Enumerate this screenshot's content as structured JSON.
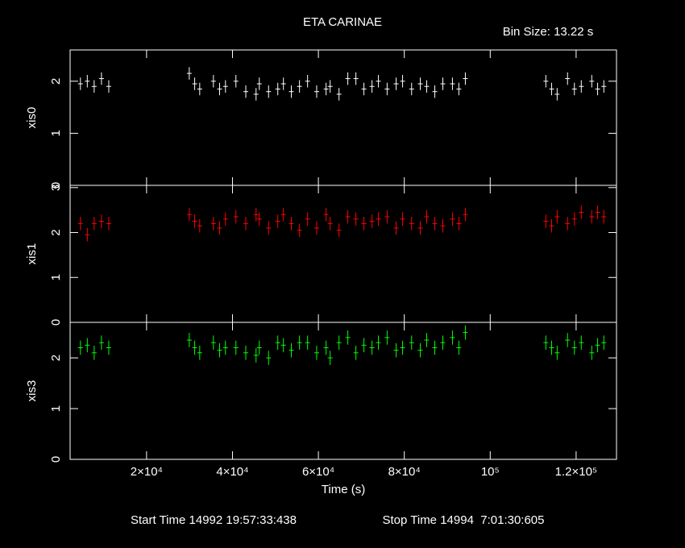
{
  "title": "ETA CARINAE",
  "bin_size": "Bin Size: 13.22 s",
  "start_time": "Start Time 14992 19:57:33:438",
  "stop_time": "Stop Time 14994  7:01:30:605",
  "chart_data": [
    {
      "type": "errorbar",
      "ylabel": "xis0",
      "ylim": [
        0,
        2.6
      ],
      "yticks": [
        0,
        1,
        2
      ],
      "xlim": [
        2200,
        129400
      ],
      "xticks": [
        20000,
        40000,
        60000,
        80000,
        100000,
        120000
      ],
      "x": [
        4600,
        6200,
        7800,
        9500,
        11200,
        29940,
        31200,
        32370,
        35560,
        37000,
        38370,
        40800,
        43100,
        45490,
        46240,
        48400,
        50550,
        51860,
        53700,
        55600,
        57480,
        59600,
        61790,
        62730,
        64800,
        66850,
        68730,
        70600,
        72480,
        73970,
        76000,
        78100,
        79600,
        81700,
        83720,
        85220,
        87100,
        88970,
        91210,
        92700,
        94210,
        112950,
        114300,
        115580,
        118000,
        119600,
        121200,
        123640,
        125000,
        126450
      ],
      "series": [
        {
          "name": "xis0",
          "color": "#ffffff",
          "error": 0.12,
          "values": [
            1.95,
            2.0,
            1.9,
            2.05,
            1.9,
            2.15,
            1.95,
            1.85,
            2.0,
            1.85,
            1.9,
            2.0,
            1.8,
            1.75,
            1.95,
            1.8,
            1.85,
            1.95,
            1.8,
            1.9,
            2.0,
            1.8,
            1.85,
            1.9,
            1.75,
            2.05,
            2.05,
            1.85,
            1.9,
            2.0,
            1.85,
            1.95,
            2.0,
            1.85,
            1.95,
            1.9,
            1.8,
            1.95,
            1.95,
            1.85,
            2.05,
            2.0,
            1.85,
            1.75,
            2.05,
            1.85,
            1.9,
            2.0,
            1.85,
            1.9
          ]
        }
      ]
    },
    {
      "type": "errorbar",
      "ylabel": "xis1",
      "ylim": [
        0,
        3.05
      ],
      "yticks": [
        0,
        1,
        2,
        3
      ],
      "xlim": [
        2200,
        129400
      ],
      "xticks": [
        20000,
        40000,
        60000,
        80000,
        100000,
        120000
      ],
      "x": [
        4600,
        6200,
        7800,
        9500,
        11200,
        29940,
        31200,
        32370,
        35560,
        37000,
        38370,
        40800,
        43100,
        45490,
        46240,
        48400,
        50550,
        51860,
        53700,
        55600,
        57480,
        59600,
        61790,
        62730,
        64800,
        66850,
        68730,
        70600,
        72480,
        73970,
        76000,
        78100,
        79600,
        81700,
        83720,
        85220,
        87100,
        88970,
        91210,
        92700,
        94210,
        112950,
        114300,
        115580,
        118000,
        119600,
        121200,
        123640,
        125000,
        126450
      ],
      "series": [
        {
          "name": "xis1",
          "color": "#ff0000",
          "error": 0.15,
          "values": [
            2.2,
            1.95,
            2.2,
            2.25,
            2.2,
            2.4,
            2.25,
            2.15,
            2.2,
            2.1,
            2.3,
            2.35,
            2.2,
            2.4,
            2.3,
            2.1,
            2.25,
            2.4,
            2.2,
            2.05,
            2.3,
            2.1,
            2.4,
            2.2,
            2.05,
            2.35,
            2.3,
            2.2,
            2.25,
            2.3,
            2.35,
            2.1,
            2.3,
            2.2,
            2.1,
            2.35,
            2.2,
            2.15,
            2.3,
            2.2,
            2.4,
            2.25,
            2.15,
            2.35,
            2.2,
            2.3,
            2.45,
            2.35,
            2.45,
            2.35
          ]
        }
      ]
    },
    {
      "type": "errorbar",
      "ylabel": "xis3",
      "xlabel": "Time (s)",
      "ylim": [
        0,
        2.7
      ],
      "yticks": [
        0,
        1,
        2
      ],
      "xlim": [
        2200,
        129400
      ],
      "xticks": [
        {
          "value": 20000,
          "label": "2×10⁴"
        },
        {
          "value": 40000,
          "label": "4×10⁴"
        },
        {
          "value": 60000,
          "label": "6×10⁴"
        },
        {
          "value": 80000,
          "label": "8×10⁴"
        },
        {
          "value": 100000,
          "label": "10⁵"
        },
        {
          "value": 120000,
          "label": "1.2×10⁵"
        }
      ],
      "x": [
        4600,
        6200,
        7800,
        9500,
        11200,
        29940,
        31200,
        32370,
        35560,
        37000,
        38370,
        40800,
        43100,
        45490,
        46240,
        48400,
        50550,
        51860,
        53700,
        55600,
        57480,
        59600,
        61790,
        62730,
        64800,
        66850,
        68730,
        70600,
        72480,
        73970,
        76000,
        78100,
        79600,
        81700,
        83720,
        85220,
        87100,
        88970,
        91210,
        92700,
        94210,
        112950,
        114300,
        115580,
        118000,
        119600,
        121200,
        123640,
        125000,
        126450
      ],
      "series": [
        {
          "name": "xis3",
          "color": "#00ff00",
          "error": 0.14,
          "values": [
            2.2,
            2.25,
            2.1,
            2.3,
            2.2,
            2.35,
            2.2,
            2.1,
            2.3,
            2.15,
            2.2,
            2.2,
            2.1,
            2.05,
            2.2,
            2.0,
            2.3,
            2.25,
            2.15,
            2.3,
            2.3,
            2.1,
            2.2,
            2.0,
            2.3,
            2.4,
            2.1,
            2.25,
            2.2,
            2.3,
            2.4,
            2.15,
            2.2,
            2.3,
            2.15,
            2.35,
            2.2,
            2.3,
            2.4,
            2.2,
            2.5,
            2.3,
            2.2,
            2.1,
            2.35,
            2.2,
            2.3,
            2.1,
            2.25,
            2.3
          ]
        }
      ]
    }
  ]
}
